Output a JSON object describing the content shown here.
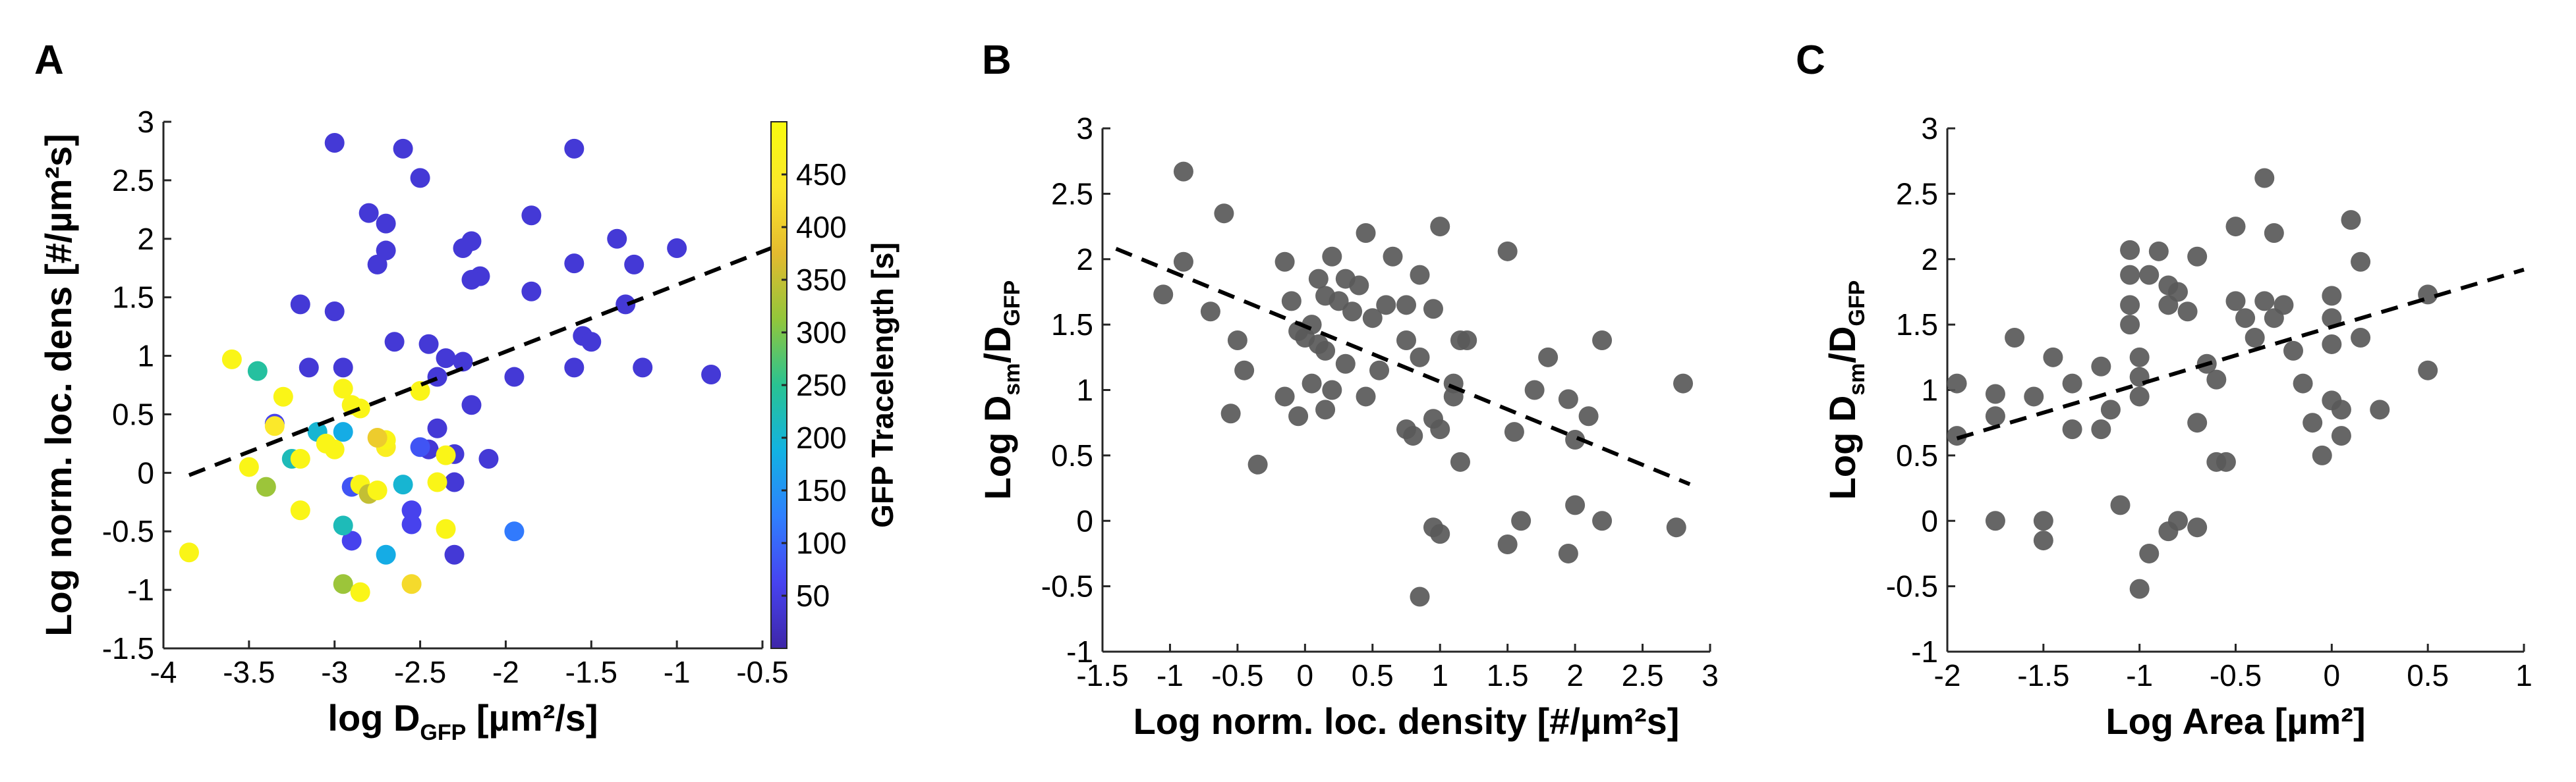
{
  "chart_data": [
    {
      "panel": "A",
      "type": "scatter",
      "xlabel_main": "log D",
      "xlabel_sub": "GFP",
      "xlabel_tail": " [µm²/s]",
      "ylabel": "Log norm. loc. dens [#/µm²s]",
      "xlim": [
        -4,
        -0.5
      ],
      "ylim": [
        -1.5,
        3
      ],
      "xticks": [
        "-4",
        "-3.5",
        "-3",
        "-2.5",
        "-2",
        "-1.5",
        "-1",
        "-0.5"
      ],
      "yticks": [
        "-1.5",
        "-1",
        "-0.5",
        "0",
        "0.5",
        "1",
        "1.5",
        "2",
        "2.5",
        "3"
      ],
      "colorbar": {
        "label": "GFP Tracelength [s]",
        "range": [
          0,
          500
        ],
        "ticks": [
          "50",
          "100",
          "150",
          "200",
          "250",
          "300",
          "350",
          "400",
          "450"
        ],
        "colormap": [
          "#3e26a8",
          "#4743f0",
          "#2f7ffe",
          "#12b2e2",
          "#29c392",
          "#92c63b",
          "#e4ba2f",
          "#fbe72b",
          "#f9fb0e"
        ]
      },
      "fit_line": {
        "x": [
          -3.85,
          -0.45
        ],
        "y": [
          -0.02,
          1.92
        ]
      },
      "points": [
        {
          "x": -3.0,
          "y": 2.82,
          "c": 40
        },
        {
          "x": -2.6,
          "y": 2.77,
          "c": 40
        },
        {
          "x": -1.6,
          "y": 2.77,
          "c": 40
        },
        {
          "x": -2.5,
          "y": 2.52,
          "c": 40
        },
        {
          "x": -2.8,
          "y": 2.22,
          "c": 40
        },
        {
          "x": -2.7,
          "y": 2.13,
          "c": 40
        },
        {
          "x": -1.85,
          "y": 2.2,
          "c": 40
        },
        {
          "x": -2.2,
          "y": 1.98,
          "c": 40
        },
        {
          "x": -2.25,
          "y": 1.92,
          "c": 40
        },
        {
          "x": -2.7,
          "y": 1.9,
          "c": 40
        },
        {
          "x": -2.75,
          "y": 1.78,
          "c": 40
        },
        {
          "x": -1.35,
          "y": 2.0,
          "c": 40
        },
        {
          "x": -1.0,
          "y": 1.92,
          "c": 40
        },
        {
          "x": -1.25,
          "y": 1.78,
          "c": 40
        },
        {
          "x": -1.6,
          "y": 1.79,
          "c": 40
        },
        {
          "x": -2.15,
          "y": 1.68,
          "c": 40
        },
        {
          "x": -2.2,
          "y": 1.65,
          "c": 40
        },
        {
          "x": -1.85,
          "y": 1.55,
          "c": 40
        },
        {
          "x": -3.2,
          "y": 1.44,
          "c": 40
        },
        {
          "x": -3.0,
          "y": 1.38,
          "c": 40
        },
        {
          "x": -1.3,
          "y": 1.44,
          "c": 40
        },
        {
          "x": -1.55,
          "y": 1.17,
          "c": 40
        },
        {
          "x": -1.5,
          "y": 1.12,
          "c": 40
        },
        {
          "x": -2.65,
          "y": 1.12,
          "c": 40
        },
        {
          "x": -2.45,
          "y": 1.1,
          "c": 40
        },
        {
          "x": -2.35,
          "y": 0.98,
          "c": 40
        },
        {
          "x": -2.25,
          "y": 0.95,
          "c": 40
        },
        {
          "x": -2.4,
          "y": 0.82,
          "c": 40
        },
        {
          "x": -2.95,
          "y": 0.9,
          "c": 40
        },
        {
          "x": -3.15,
          "y": 0.9,
          "c": 40
        },
        {
          "x": -1.95,
          "y": 0.82,
          "c": 40
        },
        {
          "x": -0.8,
          "y": 0.84,
          "c": 40
        },
        {
          "x": -1.2,
          "y": 0.9,
          "c": 40
        },
        {
          "x": -1.6,
          "y": 0.9,
          "c": 40
        },
        {
          "x": -2.2,
          "y": 0.58,
          "c": 40
        },
        {
          "x": -2.4,
          "y": 0.38,
          "c": 40
        },
        {
          "x": -2.1,
          "y": 0.12,
          "c": 40
        },
        {
          "x": -2.45,
          "y": 0.2,
          "c": 40
        },
        {
          "x": -2.5,
          "y": 0.22,
          "c": 80
        },
        {
          "x": -2.3,
          "y": 0.16,
          "c": 40
        },
        {
          "x": -2.3,
          "y": -0.08,
          "c": 40
        },
        {
          "x": -2.55,
          "y": -0.32,
          "c": 60
        },
        {
          "x": -2.55,
          "y": -0.44,
          "c": 60
        },
        {
          "x": -2.3,
          "y": -0.7,
          "c": 40
        },
        {
          "x": -2.9,
          "y": -0.58,
          "c": 60
        },
        {
          "x": -2.9,
          "y": -0.12,
          "c": 80
        },
        {
          "x": -1.95,
          "y": -0.5,
          "c": 120
        },
        {
          "x": -3.35,
          "y": 0.42,
          "c": 60
        },
        {
          "x": -3.25,
          "y": 0.12,
          "c": 220
        },
        {
          "x": -3.1,
          "y": 0.35,
          "c": 200
        },
        {
          "x": -2.95,
          "y": 0.35,
          "c": 180
        },
        {
          "x": -3.45,
          "y": 0.87,
          "c": 240
        },
        {
          "x": -3.35,
          "y": 0.4,
          "c": 440
        },
        {
          "x": -3.6,
          "y": 0.97,
          "c": 480
        },
        {
          "x": -3.3,
          "y": 0.65,
          "c": 480
        },
        {
          "x": -3.2,
          "y": 0.12,
          "c": 480
        },
        {
          "x": -3.5,
          "y": 0.05,
          "c": 480
        },
        {
          "x": -3.4,
          "y": -0.12,
          "c": 320
        },
        {
          "x": -3.2,
          "y": -0.32,
          "c": 480
        },
        {
          "x": -3.85,
          "y": -0.68,
          "c": 480
        },
        {
          "x": -2.95,
          "y": 0.72,
          "c": 480
        },
        {
          "x": -2.85,
          "y": 0.55,
          "c": 480
        },
        {
          "x": -2.9,
          "y": 0.58,
          "c": 480
        },
        {
          "x": -3.0,
          "y": 0.2,
          "c": 480
        },
        {
          "x": -3.05,
          "y": 0.25,
          "c": 480
        },
        {
          "x": -2.7,
          "y": 0.22,
          "c": 460
        },
        {
          "x": -2.7,
          "y": 0.28,
          "c": 480
        },
        {
          "x": -2.75,
          "y": 0.3,
          "c": 400
        },
        {
          "x": -2.5,
          "y": 0.7,
          "c": 480
        },
        {
          "x": -2.35,
          "y": 0.15,
          "c": 480
        },
        {
          "x": -2.4,
          "y": -0.08,
          "c": 480
        },
        {
          "x": -2.35,
          "y": -0.48,
          "c": 480
        },
        {
          "x": -2.85,
          "y": -0.1,
          "c": 480
        },
        {
          "x": -2.8,
          "y": -0.18,
          "c": 350
        },
        {
          "x": -2.75,
          "y": -0.15,
          "c": 480
        },
        {
          "x": -2.6,
          "y": -0.1,
          "c": 200
        },
        {
          "x": -2.95,
          "y": -0.45,
          "c": 220
        },
        {
          "x": -2.7,
          "y": -0.7,
          "c": 180
        },
        {
          "x": -2.95,
          "y": -0.95,
          "c": 320
        },
        {
          "x": -2.85,
          "y": -1.02,
          "c": 480
        },
        {
          "x": -2.55,
          "y": -0.95,
          "c": 420
        }
      ]
    },
    {
      "panel": "B",
      "type": "scatter",
      "xlabel": "Log norm. loc. density [#/µm²s]",
      "ylabel_main": "Log D",
      "ylabel_sub1": "sm",
      "ylabel_mid": "/D",
      "ylabel_sub2": "GFP",
      "xlim": [
        -1.5,
        3
      ],
      "ylim": [
        -1,
        3
      ],
      "xticks": [
        "-1.5",
        "-1",
        "-0.5",
        "0",
        "0.5",
        "1",
        "1.5",
        "2",
        "2.5",
        "3"
      ],
      "yticks": [
        "-1",
        "-0.5",
        "0",
        "0.5",
        "1",
        "1.5",
        "2",
        "2.5",
        "3"
      ],
      "fit_line": {
        "x": [
          -1.4,
          2.85
        ],
        "y": [
          2.08,
          0.28
        ]
      },
      "points": [
        {
          "x": -0.9,
          "y": 2.67
        },
        {
          "x": -0.6,
          "y": 2.35
        },
        {
          "x": -0.9,
          "y": 1.98
        },
        {
          "x": -1.05,
          "y": 1.73
        },
        {
          "x": -0.7,
          "y": 1.6
        },
        {
          "x": -0.5,
          "y": 1.38
        },
        {
          "x": -0.45,
          "y": 1.15
        },
        {
          "x": -0.55,
          "y": 0.82
        },
        {
          "x": -0.35,
          "y": 0.43
        },
        {
          "x": -0.15,
          "y": 1.98
        },
        {
          "x": -0.1,
          "y": 1.68
        },
        {
          "x": -0.05,
          "y": 1.45
        },
        {
          "x": 0.0,
          "y": 1.4
        },
        {
          "x": 0.05,
          "y": 1.5
        },
        {
          "x": 0.1,
          "y": 1.85
        },
        {
          "x": 0.2,
          "y": 2.02
        },
        {
          "x": 0.15,
          "y": 1.72
        },
        {
          "x": 0.25,
          "y": 1.68
        },
        {
          "x": 0.3,
          "y": 1.85
        },
        {
          "x": 0.35,
          "y": 1.6
        },
        {
          "x": 0.4,
          "y": 1.8
        },
        {
          "x": 0.45,
          "y": 2.2
        },
        {
          "x": 0.5,
          "y": 1.55
        },
        {
          "x": 0.6,
          "y": 1.65
        },
        {
          "x": 0.65,
          "y": 2.02
        },
        {
          "x": 0.75,
          "y": 1.65
        },
        {
          "x": 0.85,
          "y": 1.88
        },
        {
          "x": 0.95,
          "y": 1.62
        },
        {
          "x": 1.0,
          "y": 2.25
        },
        {
          "x": 0.1,
          "y": 1.35
        },
        {
          "x": 0.15,
          "y": 1.3
        },
        {
          "x": 0.3,
          "y": 1.2
        },
        {
          "x": 0.2,
          "y": 1.0
        },
        {
          "x": 0.05,
          "y": 1.05
        },
        {
          "x": -0.15,
          "y": 0.95
        },
        {
          "x": -0.05,
          "y": 0.8
        },
        {
          "x": 0.15,
          "y": 0.85
        },
        {
          "x": 0.45,
          "y": 0.95
        },
        {
          "x": 0.55,
          "y": 1.15
        },
        {
          "x": 0.75,
          "y": 1.38
        },
        {
          "x": 0.85,
          "y": 1.25
        },
        {
          "x": 0.75,
          "y": 0.7
        },
        {
          "x": 0.8,
          "y": 0.65
        },
        {
          "x": 0.95,
          "y": 0.78
        },
        {
          "x": 1.0,
          "y": 0.7
        },
        {
          "x": 1.1,
          "y": 1.05
        },
        {
          "x": 1.15,
          "y": 1.38
        },
        {
          "x": 1.2,
          "y": 1.38
        },
        {
          "x": 1.1,
          "y": 0.95
        },
        {
          "x": 1.15,
          "y": 0.45
        },
        {
          "x": 1.5,
          "y": 2.06
        },
        {
          "x": 1.55,
          "y": 0.68
        },
        {
          "x": 1.7,
          "y": 1.0
        },
        {
          "x": 1.8,
          "y": 1.25
        },
        {
          "x": 1.95,
          "y": 0.93
        },
        {
          "x": 2.0,
          "y": 0.62
        },
        {
          "x": 2.1,
          "y": 0.8
        },
        {
          "x": 2.2,
          "y": 1.38
        },
        {
          "x": 1.6,
          "y": 0.0
        },
        {
          "x": 1.5,
          "y": -0.18
        },
        {
          "x": 2.0,
          "y": 0.12
        },
        {
          "x": 2.2,
          "y": 0.0
        },
        {
          "x": 1.95,
          "y": -0.25
        },
        {
          "x": 0.95,
          "y": -0.05
        },
        {
          "x": 1.0,
          "y": -0.1
        },
        {
          "x": 0.85,
          "y": -0.58
        },
        {
          "x": 2.75,
          "y": -0.05
        },
        {
          "x": 2.8,
          "y": 1.05
        }
      ]
    },
    {
      "panel": "C",
      "type": "scatter",
      "xlabel": "Log Area [µm²]",
      "ylabel_main": "Log D",
      "ylabel_sub1": "sm",
      "ylabel_mid": "/D",
      "ylabel_sub2": "GFP",
      "xlim": [
        -2,
        1
      ],
      "ylim": [
        -1,
        3
      ],
      "xticks": [
        "-2",
        "-1.5",
        "-1",
        "-0.5",
        "0",
        "0.5",
        "1"
      ],
      "yticks": [
        "-1",
        "-0.5",
        "0",
        "0.5",
        "1",
        "1.5",
        "2",
        "2.5",
        "3"
      ],
      "fit_line": {
        "x": [
          -1.95,
          1.0
        ],
        "y": [
          0.63,
          1.92
        ]
      },
      "points": [
        {
          "x": -1.95,
          "y": 1.05
        },
        {
          "x": -1.95,
          "y": 0.65
        },
        {
          "x": -1.75,
          "y": 0.97
        },
        {
          "x": -1.75,
          "y": 0.8
        },
        {
          "x": -1.65,
          "y": 1.4
        },
        {
          "x": -1.55,
          "y": 0.95
        },
        {
          "x": -1.45,
          "y": 1.25
        },
        {
          "x": -1.35,
          "y": 0.7
        },
        {
          "x": -1.35,
          "y": 1.05
        },
        {
          "x": -1.2,
          "y": 0.7
        },
        {
          "x": -1.2,
          "y": 1.18
        },
        {
          "x": -1.15,
          "y": 0.85
        },
        {
          "x": -1.05,
          "y": 2.07
        },
        {
          "x": -1.05,
          "y": 1.88
        },
        {
          "x": -1.05,
          "y": 1.65
        },
        {
          "x": -1.05,
          "y": 1.5
        },
        {
          "x": -1.0,
          "y": 1.25
        },
        {
          "x": -1.0,
          "y": 1.1
        },
        {
          "x": -1.0,
          "y": 0.95
        },
        {
          "x": -0.95,
          "y": 1.88
        },
        {
          "x": -0.9,
          "y": 2.06
        },
        {
          "x": -0.85,
          "y": 1.8
        },
        {
          "x": -0.85,
          "y": 1.65
        },
        {
          "x": -0.8,
          "y": 1.75
        },
        {
          "x": -0.75,
          "y": 1.6
        },
        {
          "x": -0.7,
          "y": 2.02
        },
        {
          "x": -0.65,
          "y": 1.2
        },
        {
          "x": -0.6,
          "y": 1.08
        },
        {
          "x": -0.5,
          "y": 2.25
        },
        {
          "x": -0.5,
          "y": 1.68
        },
        {
          "x": -0.45,
          "y": 1.55
        },
        {
          "x": -0.4,
          "y": 1.4
        },
        {
          "x": -0.35,
          "y": 2.62
        },
        {
          "x": -0.3,
          "y": 2.2
        },
        {
          "x": -0.35,
          "y": 1.68
        },
        {
          "x": -0.3,
          "y": 1.55
        },
        {
          "x": -0.25,
          "y": 1.65
        },
        {
          "x": -0.2,
          "y": 1.3
        },
        {
          "x": -0.15,
          "y": 1.05
        },
        {
          "x": -0.1,
          "y": 0.75
        },
        {
          "x": -0.05,
          "y": 0.5
        },
        {
          "x": 0.0,
          "y": 1.72
        },
        {
          "x": 0.0,
          "y": 1.55
        },
        {
          "x": 0.0,
          "y": 1.35
        },
        {
          "x": 0.0,
          "y": 0.92
        },
        {
          "x": 0.05,
          "y": 0.85
        },
        {
          "x": 0.05,
          "y": 0.65
        },
        {
          "x": 0.1,
          "y": 2.3
        },
        {
          "x": 0.15,
          "y": 1.98
        },
        {
          "x": 0.15,
          "y": 1.4
        },
        {
          "x": 0.25,
          "y": 0.85
        },
        {
          "x": 0.5,
          "y": 1.73
        },
        {
          "x": 0.5,
          "y": 1.15
        },
        {
          "x": -0.6,
          "y": 0.45
        },
        {
          "x": -0.55,
          "y": 0.45
        },
        {
          "x": -0.7,
          "y": 0.75
        },
        {
          "x": -0.8,
          "y": 0.0
        },
        {
          "x": -0.85,
          "y": -0.08
        },
        {
          "x": -0.7,
          "y": -0.05
        },
        {
          "x": -0.95,
          "y": -0.25
        },
        {
          "x": -1.0,
          "y": -0.52
        },
        {
          "x": -1.1,
          "y": 0.12
        },
        {
          "x": -1.5,
          "y": 0.0
        },
        {
          "x": -1.5,
          "y": -0.15
        },
        {
          "x": -1.75,
          "y": 0.0
        }
      ]
    }
  ]
}
